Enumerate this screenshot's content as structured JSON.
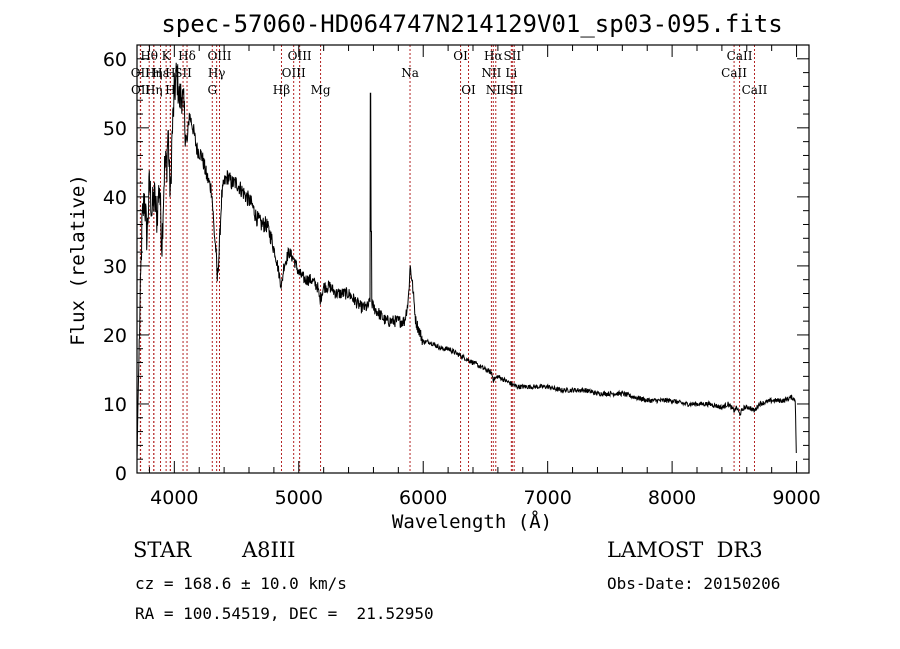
{
  "chart_data": {
    "type": "line",
    "title": "spec-57060-HD064747N214129V01_sp03-095.fits",
    "xlabel": "Wavelength (Å)",
    "ylabel": "Flux (relative)",
    "xlim": [
      3700,
      9100
    ],
    "ylim": [
      0,
      62
    ],
    "xticks": [
      4000,
      5000,
      6000,
      7000,
      8000,
      9000
    ],
    "yticks": [
      0,
      10,
      20,
      30,
      40,
      50,
      60
    ],
    "spectrum_knots": [
      [
        3700,
        2
      ],
      [
        3710,
        12
      ],
      [
        3720,
        20
      ],
      [
        3740,
        36
      ],
      [
        3760,
        40
      ],
      [
        3780,
        34
      ],
      [
        3800,
        42
      ],
      [
        3820,
        38
      ],
      [
        3840,
        40
      ],
      [
        3860,
        37
      ],
      [
        3880,
        42
      ],
      [
        3900,
        33
      ],
      [
        3920,
        44
      ],
      [
        3940,
        45
      ],
      [
        3950,
        50
      ],
      [
        3960,
        43
      ],
      [
        3970,
        40
      ],
      [
        3980,
        48
      ],
      [
        4000,
        55
      ],
      [
        4020,
        58
      ],
      [
        4040,
        54
      ],
      [
        4060,
        55
      ],
      [
        4080,
        52
      ],
      [
        4100,
        47
      ],
      [
        4120,
        52
      ],
      [
        4150,
        50
      ],
      [
        4180,
        47
      ],
      [
        4220,
        46
      ],
      [
        4260,
        43
      ],
      [
        4300,
        41
      ],
      [
        4320,
        35
      ],
      [
        4335,
        32
      ],
      [
        4345,
        28
      ],
      [
        4360,
        32
      ],
      [
        4380,
        40
      ],
      [
        4400,
        42
      ],
      [
        4430,
        43
      ],
      [
        4460,
        42
      ],
      [
        4500,
        42
      ],
      [
        4540,
        41
      ],
      [
        4580,
        40
      ],
      [
        4620,
        39
      ],
      [
        4660,
        37
      ],
      [
        4700,
        36
      ],
      [
        4740,
        36
      ],
      [
        4780,
        34
      ],
      [
        4820,
        31
      ],
      [
        4850,
        28
      ],
      [
        4862,
        27
      ],
      [
        4880,
        30
      ],
      [
        4920,
        32
      ],
      [
        4960,
        31
      ],
      [
        5000,
        29
      ],
      [
        5050,
        28
      ],
      [
        5100,
        28
      ],
      [
        5150,
        27
      ],
      [
        5170,
        25
      ],
      [
        5200,
        27
      ],
      [
        5250,
        27
      ],
      [
        5300,
        26
      ],
      [
        5350,
        26
      ],
      [
        5400,
        26
      ],
      [
        5450,
        25
      ],
      [
        5500,
        24
      ],
      [
        5550,
        24
      ],
      [
        5580,
        25
      ],
      [
        5600,
        24
      ],
      [
        5650,
        23
      ],
      [
        5700,
        22
      ],
      [
        5750,
        22
      ],
      [
        5800,
        22
      ],
      [
        5850,
        22
      ],
      [
        5880,
        25
      ],
      [
        5895,
        30
      ],
      [
        5910,
        28
      ],
      [
        5940,
        22
      ],
      [
        5980,
        20
      ],
      [
        6000,
        19
      ],
      [
        6050,
        19
      ],
      [
        6100,
        18.5
      ],
      [
        6150,
        18
      ],
      [
        6200,
        18
      ],
      [
        6250,
        17.5
      ],
      [
        6300,
        17
      ],
      [
        6350,
        16.5
      ],
      [
        6400,
        16
      ],
      [
        6450,
        15.5
      ],
      [
        6500,
        15
      ],
      [
        6550,
        14.5
      ],
      [
        6563,
        13.5
      ],
      [
        6600,
        14
      ],
      [
        6650,
        13.5
      ],
      [
        6700,
        13
      ],
      [
        6750,
        12.5
      ],
      [
        6800,
        12.5
      ],
      [
        6900,
        12.5
      ],
      [
        7000,
        12.5
      ],
      [
        7100,
        12
      ],
      [
        7200,
        12
      ],
      [
        7300,
        12
      ],
      [
        7400,
        11.5
      ],
      [
        7500,
        11.5
      ],
      [
        7600,
        11.5
      ],
      [
        7700,
        11
      ],
      [
        7800,
        10.5
      ],
      [
        7900,
        10.5
      ],
      [
        8000,
        10.5
      ],
      [
        8100,
        10
      ],
      [
        8200,
        10
      ],
      [
        8300,
        10
      ],
      [
        8400,
        9.5
      ],
      [
        8450,
        10
      ],
      [
        8498,
        9
      ],
      [
        8520,
        9.5
      ],
      [
        8542,
        8.5
      ],
      [
        8580,
        9.5
      ],
      [
        8620,
        9.5
      ],
      [
        8662,
        9
      ],
      [
        8700,
        10
      ],
      [
        8800,
        10.5
      ],
      [
        8900,
        10.5
      ],
      [
        8960,
        11
      ],
      [
        8990,
        10.5
      ],
      [
        9000,
        1
      ]
    ],
    "spectrum_spikes": [
      {
        "wavelength": 5577,
        "flux": 55
      },
      {
        "wavelength": 5583,
        "flux": 35
      }
    ],
    "spectral_lines": [
      {
        "label": "OII",
        "wavelength": 3727,
        "row": 2
      },
      {
        "label": "OII",
        "wavelength": 3729,
        "row": 3
      },
      {
        "label": "Hθ",
        "wavelength": 3798,
        "row": 1
      },
      {
        "label": "Hη",
        "wavelength": 3835,
        "row": 2
      },
      {
        "label": "Hη",
        "wavelength": 3835,
        "row": 3
      },
      {
        "label": "Hε",
        "wavelength": 3889,
        "row": 2
      },
      {
        "label": "K",
        "wavelength": 3934,
        "row": 1
      },
      {
        "label": "H",
        "wavelength": 3968,
        "row": 2
      },
      {
        "label": "H",
        "wavelength": 3968,
        "row": 3
      },
      {
        "label": "SII",
        "wavelength": 4070,
        "row": 2
      },
      {
        "label": "Hδ",
        "wavelength": 4102,
        "row": 1
      },
      {
        "label": "OIII",
        "wavelength": 4363,
        "row": 1
      },
      {
        "label": "Hγ",
        "wavelength": 4340,
        "row": 2
      },
      {
        "label": "G",
        "wavelength": 4305,
        "row": 3
      },
      {
        "label": "Hβ",
        "wavelength": 4861,
        "row": 3
      },
      {
        "label": "OIII",
        "wavelength": 4959,
        "row": 2
      },
      {
        "label": "OIII",
        "wavelength": 5007,
        "row": 1
      },
      {
        "label": "Mg",
        "wavelength": 5175,
        "row": 3
      },
      {
        "label": "Na",
        "wavelength": 5894,
        "row": 2
      },
      {
        "label": "OI",
        "wavelength": 6300,
        "row": 1
      },
      {
        "label": "OI",
        "wavelength": 6364,
        "row": 3
      },
      {
        "label": "NII",
        "wavelength": 6548,
        "row": 2
      },
      {
        "label": "NII",
        "wavelength": 6583,
        "row": 3
      },
      {
        "label": "Hα",
        "wavelength": 6563,
        "row": 1
      },
      {
        "label": "SII",
        "wavelength": 6716,
        "row": 1
      },
      {
        "label": "Li",
        "wavelength": 6708,
        "row": 2
      },
      {
        "label": "SII",
        "wavelength": 6731,
        "row": 3
      },
      {
        "label": "CaII",
        "wavelength": 8498,
        "row": 2
      },
      {
        "label": "CaII",
        "wavelength": 8542,
        "row": 1
      },
      {
        "label": "CaII",
        "wavelength": 8662,
        "row": 3
      }
    ]
  },
  "info": {
    "object_class": "STAR",
    "subclass": "A8III",
    "survey": "LAMOST  DR3",
    "cz": "cz = 168.6 ± 10.0 km/s",
    "obs_date": "Obs-Date: 20150206",
    "coords": "RA = 100.54519, DEC =  21.52950"
  },
  "colors": {
    "spectrum": "#000000",
    "line_markers": "#b22222",
    "axes": "#000000",
    "background": "#ffffff"
  }
}
